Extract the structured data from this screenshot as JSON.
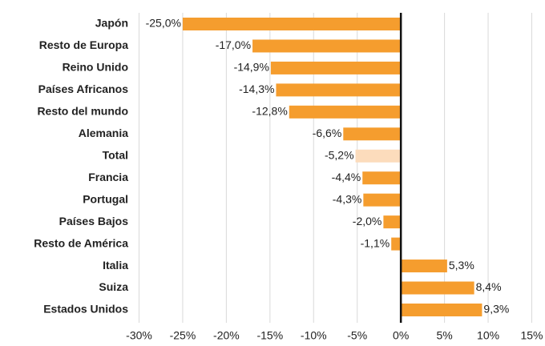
{
  "chart_data": {
    "type": "bar",
    "orientation": "horizontal",
    "categories": [
      "Japón",
      "Resto de Europa",
      "Reino Unido",
      "Países Africanos",
      "Resto del mundo",
      "Alemania",
      "Total",
      "Francia",
      "Portugal",
      "Países Bajos",
      "Resto de América",
      "Italia",
      "Suiza",
      "Estados Unidos"
    ],
    "values": [
      -25.0,
      -17.0,
      -14.9,
      -14.3,
      -12.8,
      -6.6,
      -5.2,
      -4.4,
      -4.3,
      -2.0,
      -1.1,
      5.3,
      8.4,
      9.3
    ],
    "value_labels": [
      "-25,0%",
      "-17,0%",
      "-14,9%",
      "-14,3%",
      "-12,8%",
      "-6,6%",
      "-5,2%",
      "-4,4%",
      "-4,3%",
      "-2,0%",
      "-1,1%",
      "5,3%",
      "8,4%",
      "9,3%"
    ],
    "colors": [
      "#f59d2e",
      "#f59d2e",
      "#f59d2e",
      "#f59d2e",
      "#f59d2e",
      "#f59d2e",
      "#fcdcbc",
      "#f59d2e",
      "#f59d2e",
      "#f59d2e",
      "#f59d2e",
      "#f59d2e",
      "#f59d2e",
      "#f59d2e"
    ],
    "xlim": [
      -30,
      15
    ],
    "xticks": [
      {
        "value": -30,
        "label": "-30%"
      },
      {
        "value": -25,
        "label": "-25%"
      },
      {
        "value": -20,
        "label": "-20%"
      },
      {
        "value": -15,
        "label": "-15%"
      },
      {
        "value": -10,
        "label": "-10%"
      },
      {
        "value": -5,
        "label": "-5%"
      },
      {
        "value": 0,
        "label": "0%"
      },
      {
        "value": 5,
        "label": "5%"
      },
      {
        "value": 10,
        "label": "10%"
      },
      {
        "value": 15,
        "label": "15%"
      }
    ],
    "grid": true
  }
}
